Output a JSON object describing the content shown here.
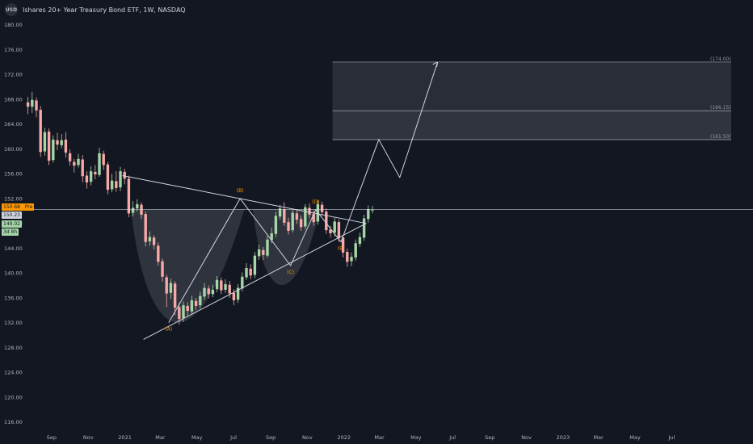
{
  "header": {
    "icon_text": "USD",
    "title": "Ishares 20+ Year Treasury Bond ETF, 1W, NASDAQ"
  },
  "price_tags": {
    "pre_price": "150.68",
    "pre_label": "Pre",
    "last_price": "150.23",
    "last_price2": "149.02",
    "countdown": "3d 8h"
  },
  "colors": {
    "background": "#131722",
    "up": "#a5d6a7",
    "down": "#f7a9a7",
    "line": "#d1d4dc",
    "label": "#ff9800",
    "zone": "#363a45"
  },
  "chart_data": {
    "type": "candlestick",
    "title": "Ishares 20+ Year Treasury Bond ETF, 1W, NASDAQ",
    "y_ticks": [
      116,
      120,
      124,
      128,
      132,
      136,
      140,
      144,
      148,
      152,
      156,
      160,
      164,
      168,
      172,
      176,
      180
    ],
    "y_tick_labels": [
      "116.00",
      "120.00",
      "124.00",
      "128.00",
      "132.00",
      "136.00",
      "140.00",
      "144.00",
      "148.00",
      "152.00",
      "156.00",
      "160.00",
      "164.00",
      "168.00",
      "172.00",
      "176.00",
      "180.00"
    ],
    "ylim": [
      114,
      184
    ],
    "x_labels": [
      "Sep",
      "Nov",
      "2021",
      "Mar",
      "May",
      "Jul",
      "Sep",
      "Nov",
      "2022",
      "Mar",
      "May",
      "Jul",
      "Sep",
      "Nov",
      "2023",
      "Mar",
      "May",
      "Jul"
    ],
    "x_start_week": "2020-07-20",
    "candles": [
      {
        "o": 167.5,
        "c": 166.8,
        "h": 168.4,
        "l": 165.6
      },
      {
        "o": 166.8,
        "c": 167.9,
        "h": 169.2,
        "l": 165.8
      },
      {
        "o": 167.8,
        "c": 166.2,
        "h": 168.3,
        "l": 165.1
      },
      {
        "o": 166.3,
        "c": 159.5,
        "h": 166.9,
        "l": 158.7
      },
      {
        "o": 159.6,
        "c": 162.7,
        "h": 163.4,
        "l": 158.9
      },
      {
        "o": 162.8,
        "c": 158.1,
        "h": 163.3,
        "l": 157.4
      },
      {
        "o": 158.2,
        "c": 161.5,
        "h": 162.2,
        "l": 157.8
      },
      {
        "o": 161.4,
        "c": 160.7,
        "h": 162.6,
        "l": 159.8
      },
      {
        "o": 160.6,
        "c": 161.4,
        "h": 162.4,
        "l": 160.1
      },
      {
        "o": 161.5,
        "c": 159.4,
        "h": 162.7,
        "l": 158.6
      },
      {
        "o": 159.3,
        "c": 158.0,
        "h": 159.9,
        "l": 157.3
      },
      {
        "o": 157.9,
        "c": 157.3,
        "h": 158.4,
        "l": 156.2
      },
      {
        "o": 157.4,
        "c": 158.4,
        "h": 159.2,
        "l": 157.0
      },
      {
        "o": 158.3,
        "c": 155.6,
        "h": 159.0,
        "l": 154.6
      },
      {
        "o": 155.7,
        "c": 154.6,
        "h": 156.4,
        "l": 153.6
      },
      {
        "o": 154.7,
        "c": 156.4,
        "h": 157.2,
        "l": 154.1
      },
      {
        "o": 156.3,
        "c": 155.9,
        "h": 157.4,
        "l": 155.1
      },
      {
        "o": 155.8,
        "c": 159.3,
        "h": 160.2,
        "l": 155.5
      },
      {
        "o": 159.2,
        "c": 157.4,
        "h": 159.7,
        "l": 156.6
      },
      {
        "o": 157.5,
        "c": 153.4,
        "h": 157.9,
        "l": 152.7
      },
      {
        "o": 153.5,
        "c": 154.9,
        "h": 156.0,
        "l": 153.0
      },
      {
        "o": 154.8,
        "c": 153.7,
        "h": 156.4,
        "l": 153.1
      },
      {
        "o": 153.8,
        "c": 156.4,
        "h": 157.1,
        "l": 153.2
      },
      {
        "o": 156.3,
        "c": 155.2,
        "h": 156.8,
        "l": 154.3
      },
      {
        "o": 155.2,
        "c": 149.6,
        "h": 155.7,
        "l": 149.0
      },
      {
        "o": 149.7,
        "c": 150.5,
        "h": 151.6,
        "l": 149.1
      },
      {
        "o": 150.4,
        "c": 151.1,
        "h": 151.9,
        "l": 149.9
      },
      {
        "o": 151.0,
        "c": 149.4,
        "h": 151.4,
        "l": 148.7
      },
      {
        "o": 149.5,
        "c": 145.0,
        "h": 149.9,
        "l": 144.3
      },
      {
        "o": 145.1,
        "c": 145.8,
        "h": 146.7,
        "l": 144.4
      },
      {
        "o": 145.7,
        "c": 144.5,
        "h": 146.1,
        "l": 143.8
      },
      {
        "o": 144.4,
        "c": 141.8,
        "h": 144.9,
        "l": 141.2
      },
      {
        "o": 141.9,
        "c": 139.4,
        "h": 142.3,
        "l": 138.6
      },
      {
        "o": 139.3,
        "c": 136.7,
        "h": 139.7,
        "l": 134.5
      },
      {
        "o": 136.8,
        "c": 138.4,
        "h": 139.1,
        "l": 135.8
      },
      {
        "o": 138.3,
        "c": 134.4,
        "h": 138.7,
        "l": 133.2
      },
      {
        "o": 134.5,
        "c": 132.6,
        "h": 135.2,
        "l": 131.7
      },
      {
        "o": 132.7,
        "c": 134.8,
        "h": 135.4,
        "l": 132.1
      },
      {
        "o": 134.7,
        "c": 133.9,
        "h": 135.3,
        "l": 133.1
      },
      {
        "o": 133.8,
        "c": 135.6,
        "h": 136.3,
        "l": 133.4
      },
      {
        "o": 135.5,
        "c": 134.7,
        "h": 136.0,
        "l": 134.0
      },
      {
        "o": 134.8,
        "c": 136.3,
        "h": 137.0,
        "l": 134.3
      },
      {
        "o": 136.2,
        "c": 137.6,
        "h": 138.4,
        "l": 135.7
      },
      {
        "o": 137.5,
        "c": 136.6,
        "h": 138.0,
        "l": 135.9
      },
      {
        "o": 136.6,
        "c": 137.3,
        "h": 138.1,
        "l": 136.1
      },
      {
        "o": 137.4,
        "c": 138.9,
        "h": 139.5,
        "l": 136.9
      },
      {
        "o": 138.8,
        "c": 137.2,
        "h": 139.3,
        "l": 136.6
      },
      {
        "o": 137.3,
        "c": 138.2,
        "h": 139.0,
        "l": 136.8
      },
      {
        "o": 138.1,
        "c": 136.7,
        "h": 138.7,
        "l": 136.0
      },
      {
        "o": 136.8,
        "c": 135.6,
        "h": 137.4,
        "l": 134.8
      },
      {
        "o": 135.7,
        "c": 137.6,
        "h": 138.2,
        "l": 135.2
      },
      {
        "o": 137.5,
        "c": 139.4,
        "h": 140.1,
        "l": 137.0
      },
      {
        "o": 139.3,
        "c": 140.8,
        "h": 141.6,
        "l": 138.9
      },
      {
        "o": 140.7,
        "c": 139.6,
        "h": 141.4,
        "l": 139.0
      },
      {
        "o": 139.7,
        "c": 142.8,
        "h": 143.4,
        "l": 139.2
      },
      {
        "o": 142.7,
        "c": 143.8,
        "h": 144.6,
        "l": 142.1
      },
      {
        "o": 143.7,
        "c": 142.9,
        "h": 144.2,
        "l": 142.1
      },
      {
        "o": 142.8,
        "c": 145.4,
        "h": 146.0,
        "l": 142.5
      },
      {
        "o": 145.3,
        "c": 146.4,
        "h": 147.3,
        "l": 144.8
      },
      {
        "o": 146.3,
        "c": 149.2,
        "h": 149.9,
        "l": 145.8
      },
      {
        "o": 149.1,
        "c": 150.4,
        "h": 151.0,
        "l": 148.6
      },
      {
        "o": 150.3,
        "c": 148.1,
        "h": 151.4,
        "l": 147.6
      },
      {
        "o": 148.2,
        "c": 146.8,
        "h": 148.9,
        "l": 146.2
      },
      {
        "o": 146.9,
        "c": 149.7,
        "h": 150.2,
        "l": 146.5
      },
      {
        "o": 149.6,
        "c": 148.6,
        "h": 150.3,
        "l": 147.9
      },
      {
        "o": 148.7,
        "c": 147.4,
        "h": 149.3,
        "l": 146.8
      },
      {
        "o": 147.5,
        "c": 150.6,
        "h": 151.1,
        "l": 147.0
      },
      {
        "o": 150.5,
        "c": 149.4,
        "h": 151.2,
        "l": 148.8
      },
      {
        "o": 149.5,
        "c": 148.2,
        "h": 150.0,
        "l": 147.6
      },
      {
        "o": 148.3,
        "c": 151.1,
        "h": 151.7,
        "l": 147.8
      },
      {
        "o": 151.0,
        "c": 149.8,
        "h": 151.5,
        "l": 149.2
      },
      {
        "o": 149.9,
        "c": 146.9,
        "h": 150.4,
        "l": 146.3
      },
      {
        "o": 147.0,
        "c": 146.4,
        "h": 147.6,
        "l": 145.7
      },
      {
        "o": 146.5,
        "c": 148.3,
        "h": 148.9,
        "l": 145.9
      },
      {
        "o": 148.2,
        "c": 145.6,
        "h": 148.6,
        "l": 145.0
      },
      {
        "o": 145.7,
        "c": 143.3,
        "h": 146.1,
        "l": 142.5
      },
      {
        "o": 143.4,
        "c": 141.8,
        "h": 143.9,
        "l": 141.0
      },
      {
        "o": 141.9,
        "c": 142.6,
        "h": 143.3,
        "l": 141.1
      },
      {
        "o": 142.5,
        "c": 144.8,
        "h": 145.4,
        "l": 142.0
      },
      {
        "o": 144.7,
        "c": 145.8,
        "h": 146.5,
        "l": 144.2
      },
      {
        "o": 145.7,
        "c": 148.8,
        "h": 149.4,
        "l": 145.2
      },
      {
        "o": 148.7,
        "c": 150.3,
        "h": 150.9,
        "l": 148.1
      },
      {
        "o": 150.2,
        "c": 150.2,
        "h": 150.8,
        "l": 149.6
      }
    ],
    "zones": [
      {
        "top": 174.0,
        "bottom": 166.15,
        "label": "(174.00)"
      },
      {
        "top": 166.15,
        "bottom": 161.5,
        "label": "(161.50)"
      }
    ],
    "zone_mid_label": "(166.15)",
    "pattern_points": [
      {
        "label": "(A)",
        "date": "2021-03-15",
        "price": 132.0
      },
      {
        "label": "(B)",
        "date": "2021-07-12",
        "price": 152.0
      },
      {
        "label": "(C)",
        "date": "2021-10-04",
        "price": 141.2
      },
      {
        "label": "(D)",
        "date": "2021-11-15",
        "price": 150.2
      },
      {
        "label": "(E)",
        "date": "2021-12-27",
        "price": 145.0
      }
    ],
    "projection": [
      {
        "date": "2021-12-27",
        "price": 145.0
      },
      {
        "date": "2022-02-28",
        "price": 161.5
      },
      {
        "date": "2022-04-04",
        "price": 155.4
      },
      {
        "date": "2022-06-06",
        "price": 174.0
      }
    ],
    "trendlines": [
      {
        "from": {
          "date": "2020-12-28",
          "price": 155.7
        },
        "to": {
          "date": "2022-02-07",
          "price": 148.0
        }
      },
      {
        "from": {
          "date": "2021-02-01",
          "price": 129.3
        },
        "to": {
          "date": "2022-02-07",
          "price": 148.0
        }
      }
    ],
    "horizontal_line": 150.23
  }
}
